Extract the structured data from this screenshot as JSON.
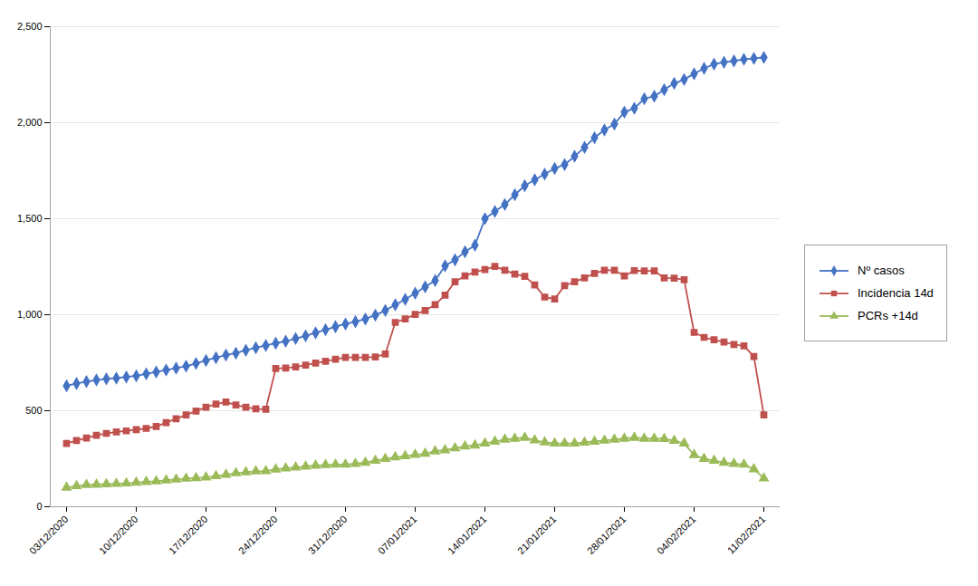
{
  "chart_data": {
    "type": "line",
    "categories": [
      "03/12/2020",
      null,
      null,
      null,
      null,
      null,
      null,
      "10/12/2020",
      null,
      null,
      null,
      null,
      null,
      null,
      "17/12/2020",
      null,
      null,
      null,
      null,
      null,
      null,
      "24/12/2020",
      null,
      null,
      null,
      null,
      null,
      null,
      "31/12/2020",
      null,
      null,
      null,
      null,
      null,
      null,
      "07/01/2021",
      null,
      null,
      null,
      null,
      null,
      null,
      "14/01/2021",
      null,
      null,
      null,
      null,
      null,
      null,
      "21/01/2021",
      null,
      null,
      null,
      null,
      null,
      null,
      "28/01/2021",
      null,
      null,
      null,
      null,
      null,
      null,
      "04/02/2021",
      null,
      null,
      null,
      null,
      null,
      null,
      "11/02/2021"
    ],
    "series": [
      {
        "name": "Nº casos",
        "color": "#4472C4",
        "marker": "diamond",
        "values": [
          630,
          642,
          652,
          660,
          666,
          670,
          676,
          682,
          692,
          702,
          712,
          722,
          732,
          746,
          762,
          776,
          790,
          800,
          815,
          828,
          840,
          852,
          862,
          876,
          890,
          906,
          922,
          938,
          952,
          964,
          978,
          998,
          1022,
          1052,
          1080,
          1112,
          1145,
          1178,
          1255,
          1286,
          1328,
          1362,
          1500,
          1538,
          1574,
          1625,
          1672,
          1703,
          1732,
          1762,
          1782,
          1825,
          1872,
          1922,
          1962,
          1993,
          2055,
          2075,
          2125,
          2138,
          2172,
          2205,
          2225,
          2255,
          2283,
          2305,
          2315,
          2322,
          2330,
          2335,
          2340
        ]
      },
      {
        "name": "Incidencia 14d",
        "color": "#C0504D",
        "marker": "square",
        "values": [
          330,
          345,
          358,
          372,
          382,
          390,
          395,
          402,
          408,
          418,
          438,
          458,
          478,
          498,
          518,
          535,
          545,
          530,
          518,
          510,
          508,
          720,
          722,
          728,
          738,
          748,
          758,
          768,
          778,
          778,
          778,
          780,
          795,
          960,
          978,
          1002,
          1022,
          1052,
          1102,
          1172,
          1202,
          1222,
          1235,
          1252,
          1232,
          1212,
          1200,
          1155,
          1092,
          1082,
          1152,
          1172,
          1192,
          1215,
          1232,
          1232,
          1202,
          1230,
          1228,
          1228,
          1192,
          1190,
          1182,
          908,
          882,
          870,
          858,
          845,
          838,
          782,
          478
        ]
      },
      {
        "name": "PCRs +14d",
        "color": "#9BBB59",
        "marker": "triangle",
        "values": [
          100,
          108,
          114,
          116,
          118,
          120,
          122,
          126,
          130,
          133,
          138,
          142,
          147,
          150,
          153,
          160,
          167,
          175,
          180,
          185,
          186,
          195,
          200,
          205,
          210,
          215,
          218,
          220,
          220,
          224,
          230,
          240,
          250,
          258,
          264,
          271,
          277,
          289,
          295,
          305,
          315,
          320,
          330,
          340,
          350,
          355,
          360,
          346,
          336,
          330,
          330,
          330,
          335,
          340,
          345,
          350,
          355,
          360,
          355,
          355,
          354,
          344,
          330,
          270,
          250,
          240,
          230,
          224,
          220,
          196,
          148
        ]
      }
    ],
    "ylim": [
      0,
      2500
    ],
    "yticks": [
      0,
      500,
      1000,
      1500,
      2000,
      2500
    ],
    "grid": true,
    "legend": "right"
  }
}
